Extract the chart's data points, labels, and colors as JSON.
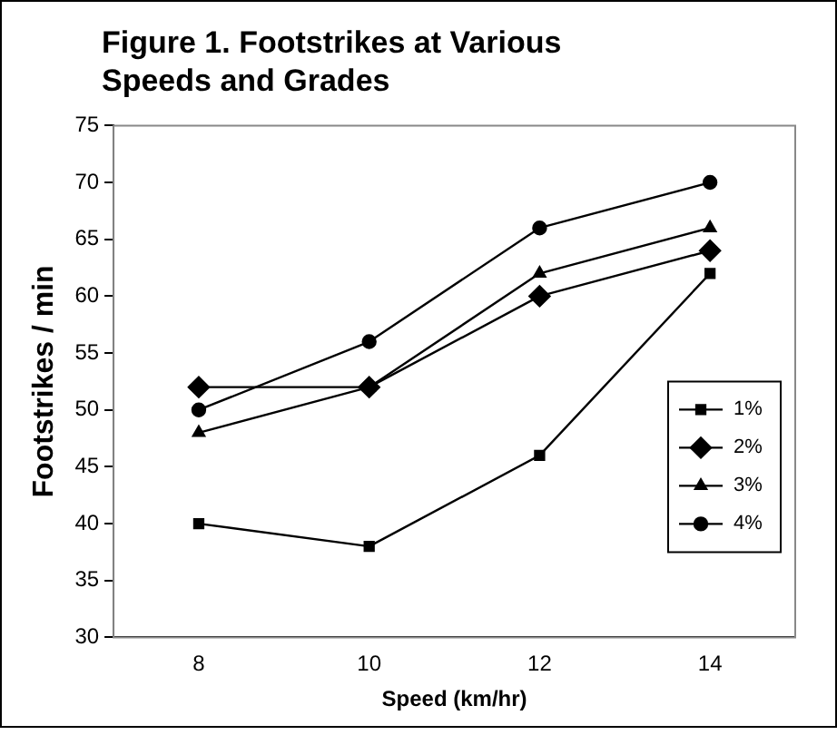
{
  "chart_data": {
    "type": "line",
    "title": "Figure 1. Footstrikes at Various Speeds and Grades",
    "xlabel": "Speed (km/hr)",
    "ylabel": "Footstrikes / min",
    "categories": [
      "8",
      "10",
      "12",
      "14"
    ],
    "series": [
      {
        "name": "1%",
        "color": "#000000",
        "marker": "square",
        "values": [
          40,
          38,
          46,
          62
        ]
      },
      {
        "name": "2%",
        "color": "#000000",
        "marker": "diamond",
        "values": [
          52,
          52,
          60,
          64
        ]
      },
      {
        "name": "3%",
        "color": "#000000",
        "marker": "triangle",
        "values": [
          48,
          52,
          62,
          66
        ]
      },
      {
        "name": "4%",
        "color": "#000000",
        "marker": "circle",
        "values": [
          50,
          56,
          66,
          70
        ]
      }
    ],
    "ylim": [
      30,
      75
    ],
    "yticks": [
      30,
      35,
      40,
      45,
      50,
      55,
      60,
      65,
      70,
      75
    ],
    "grid": false,
    "legend": "right",
    "line_style": "solid"
  }
}
